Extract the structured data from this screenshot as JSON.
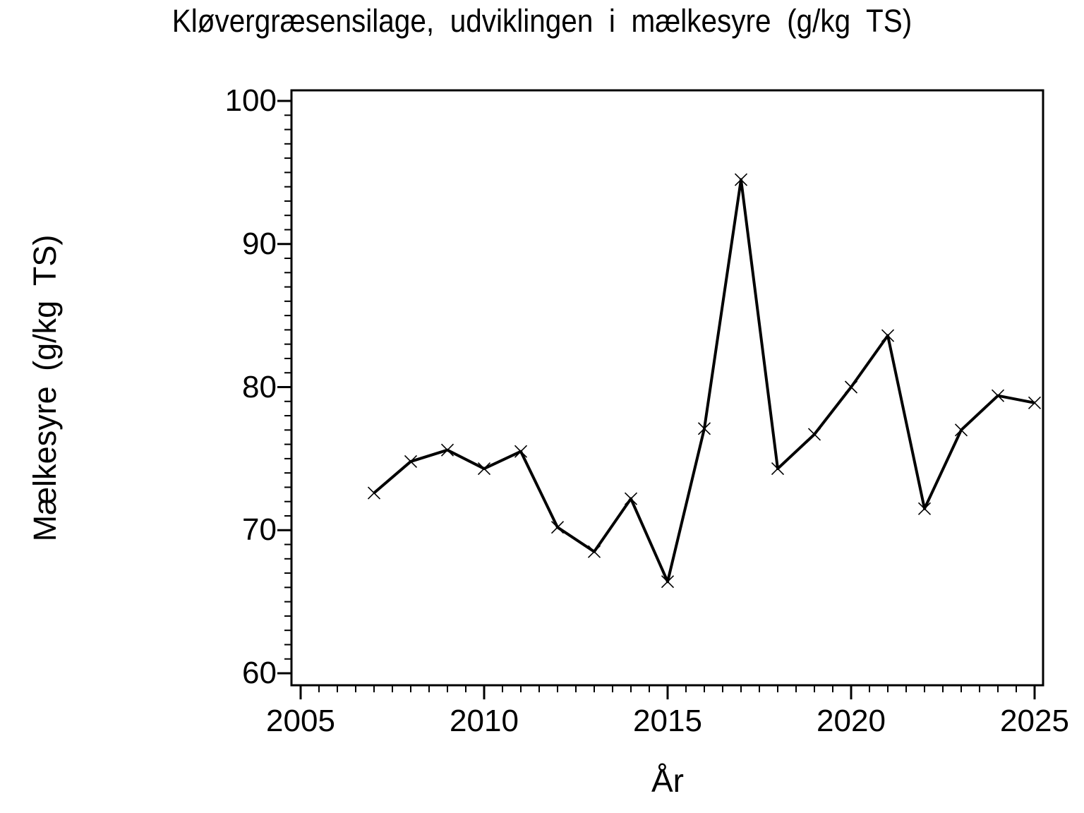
{
  "chart_data": {
    "type": "line",
    "title": "Kløvergræsensilage, udviklingen i mælkesyre (g/kg TS)",
    "xlabel": "År",
    "ylabel": "Mælkesyre  (g/kg TS)",
    "x": [
      2007,
      2008,
      2009,
      2010,
      2011,
      2012,
      2013,
      2014,
      2015,
      2016,
      2017,
      2018,
      2019,
      2020,
      2021,
      2022,
      2023,
      2024,
      2025
    ],
    "values": [
      72.6,
      74.8,
      75.6,
      74.3,
      75.5,
      70.2,
      68.5,
      72.2,
      66.4,
      77.1,
      94.5,
      74.3,
      76.7,
      80.0,
      83.6,
      71.5,
      77.0,
      79.4,
      78.9
    ],
    "marker": "x",
    "line_color": "#000000",
    "background_color": "#ffffff",
    "grid": false,
    "legend": false,
    "xaxis": {
      "min": 2004.75,
      "max": 2025.25,
      "major_ticks": [
        2005,
        2010,
        2015,
        2020,
        2025
      ],
      "major_tick_labels": [
        "2005",
        "2010",
        "2015",
        "2020",
        "2025"
      ],
      "minor_tick_step": 0.5
    },
    "yaxis": {
      "min": 59.2,
      "max": 100.8,
      "major_ticks": [
        60,
        70,
        80,
        90,
        100
      ],
      "major_tick_labels": [
        "60",
        "70",
        "80",
        "90",
        "100"
      ],
      "minor_tick_step": 1
    }
  }
}
